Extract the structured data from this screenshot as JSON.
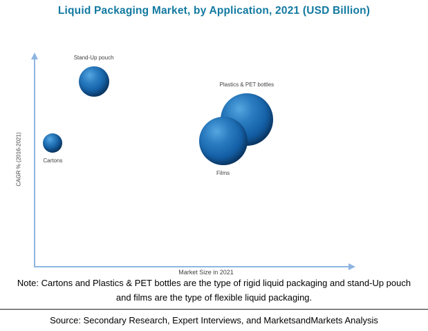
{
  "title": "Liquid Packaging Market, by Application, 2021 (USD Billion)",
  "chart_data": {
    "type": "bubble",
    "title": "Liquid Packaging Market, by Application, 2021 (USD Billion)",
    "xlabel": "Market Size in 2021",
    "ylabel": "CAGR % (2016-2021)",
    "axis_ranges": {
      "x": [
        0,
        100
      ],
      "y": [
        0,
        100
      ]
    },
    "ticks": {
      "x": [],
      "y": []
    },
    "grid": false,
    "legend": "none",
    "value_note": "axes carry no tick labels; x/y are relative position estimates (0-100) read from the plot, size is bubble radius in px",
    "series": [
      {
        "name": "Cartons",
        "x": 6,
        "y": 58,
        "size": 14,
        "label_placement": "below",
        "category": "rigid liquid packaging"
      },
      {
        "name": "Stand-Up pouch",
        "x": 19,
        "y": 87,
        "size": 22,
        "label_placement": "above",
        "category": "flexible liquid packaging"
      },
      {
        "name": "Plastics & PET bottles",
        "x": 67.5,
        "y": 69,
        "size": 38,
        "label_placement": "above",
        "category": "rigid liquid packaging"
      },
      {
        "name": "Films",
        "x": 60,
        "y": 59,
        "size": 35,
        "label_placement": "below",
        "category": "flexible liquid packaging"
      }
    ]
  },
  "note_line1": "Note: Cartons and Plastics & PET bottles are the type of rigid liquid packaging and stand-Up pouch",
  "note_line2": "and films are the type of flexible liquid packaging.",
  "source": "Source: Secondary Research, Expert Interviews, and MarketsandMarkets Analysis",
  "colors": {
    "title": "#1279a0",
    "axis": "#8eb4e3",
    "bubble": "#1561a8",
    "bubble_edge": "#082f5c",
    "label_text": "#3f3f3f"
  }
}
